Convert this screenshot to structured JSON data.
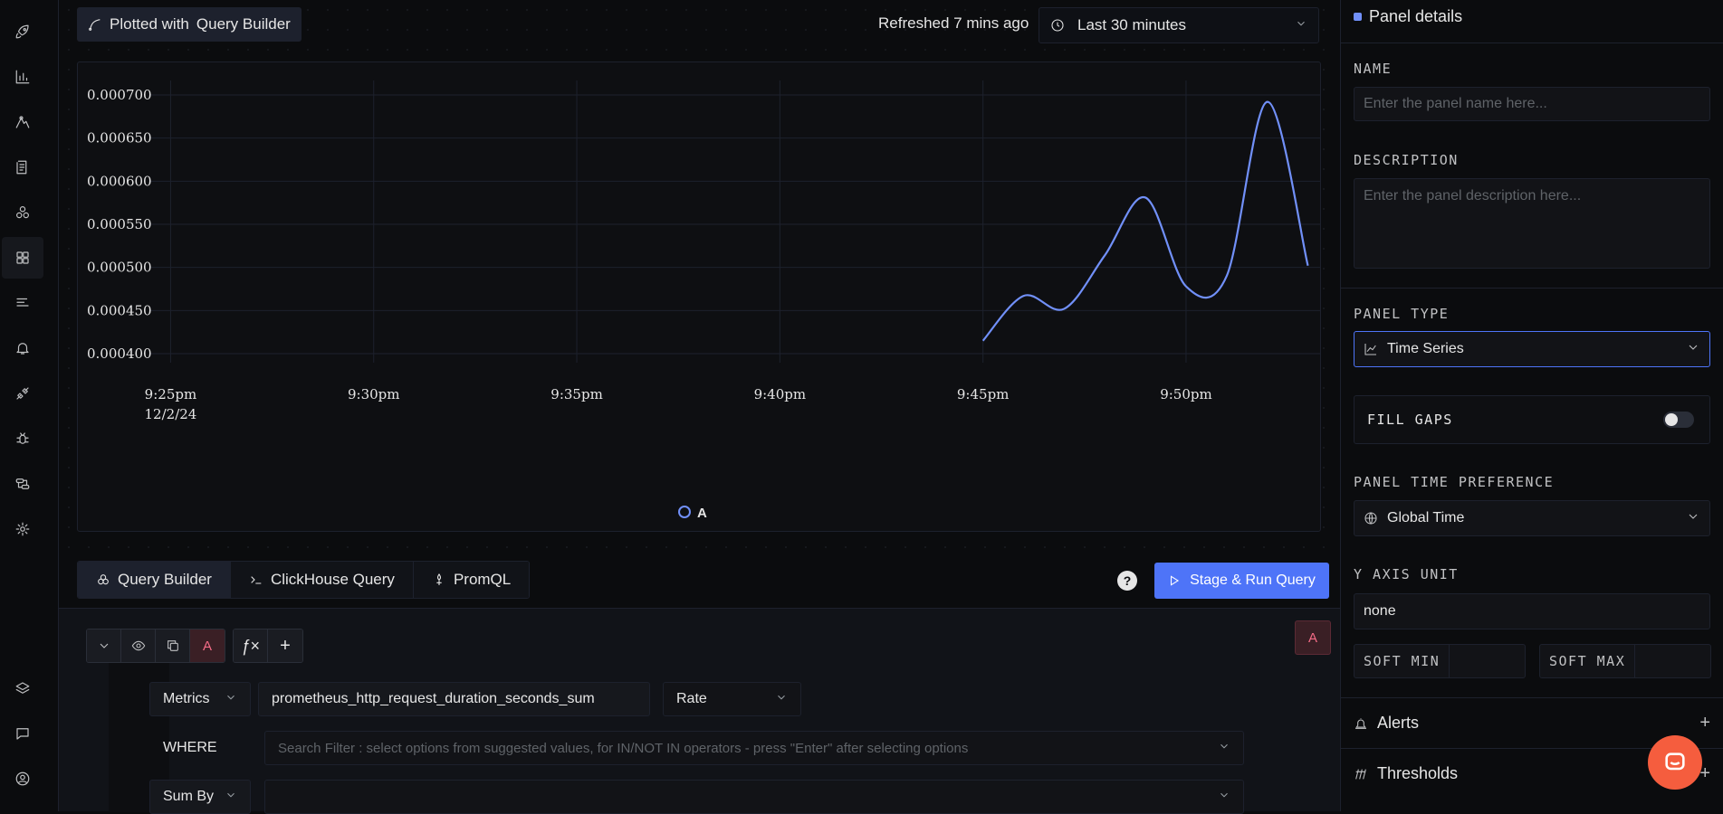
{
  "nav": {
    "top_items": [
      "rocket-icon",
      "bar-chart-icon",
      "draw-icon",
      "logs-icon",
      "services-icon",
      "dashboard-icon",
      "list-icon",
      "alerts-icon",
      "integrations-icon",
      "bug-icon",
      "pipelines-icon",
      "settings-icon"
    ],
    "bottom_items": [
      "layers-icon",
      "chat-icon",
      "user-icon"
    ],
    "active": "dashboard-icon"
  },
  "header": {
    "plotted_prefix": "Plotted with",
    "plotted_source": "Query Builder",
    "refreshed": "Refreshed 7 mins ago",
    "time_range": "Last 30 minutes"
  },
  "chart_data": {
    "type": "line",
    "x": [
      "9:45pm",
      "9:46pm",
      "9:47pm",
      "9:48pm",
      "9:49pm",
      "9:50pm",
      "9:51pm",
      "9:52pm",
      "9:53pm"
    ],
    "series": [
      {
        "name": "A",
        "color": "#7190f9",
        "values": [
          0.000415,
          0.000467,
          0.000452,
          0.000514,
          0.000581,
          0.000478,
          0.00049,
          0.000692,
          0.000502
        ]
      }
    ],
    "y_ticks": [
      "0.000700",
      "0.000650",
      "0.000600",
      "0.000550",
      "0.000500",
      "0.000450",
      "0.000400"
    ],
    "x_ticks": [
      "9:25pm",
      "9:30pm",
      "9:35pm",
      "9:40pm",
      "9:45pm",
      "9:50pm"
    ],
    "x_tick_date": "12/2/24",
    "ylim": [
      0.0004,
      0.0007
    ],
    "xlim_minutes": [
      -0.5,
      28.3
    ],
    "grid": true,
    "legend": "bottom-center"
  },
  "query": {
    "tabs": [
      "Query Builder",
      "ClickHouse Query",
      "PromQL"
    ],
    "active_tab": "Query Builder",
    "help": "?",
    "run_label": "Stage & Run Query",
    "query_name": "A",
    "fx": "ƒ×",
    "add": "+",
    "metrics_label": "Metrics",
    "metric_value": "prometheus_http_request_duration_seconds_sum",
    "aggregate": "Rate",
    "where_label": "WHERE",
    "where_placeholder": "Search Filter : select options from suggested values, for IN/NOT IN operators - press \"Enter\" after selecting options",
    "sumby_label": "Sum By"
  },
  "panel": {
    "title": "Panel details",
    "name_label": "NAME",
    "name_placeholder": "Enter the panel name here...",
    "desc_label": "DESCRIPTION",
    "desc_placeholder": "Enter the panel description here...",
    "type_label": "PANEL TYPE",
    "type_value": "Time Series",
    "fill_gaps_label": "FILL GAPS",
    "fill_gaps_on": false,
    "time_pref_label": "PANEL TIME PREFERENCE",
    "time_pref_value": "Global Time",
    "yunit_label": "Y AXIS UNIT",
    "yunit_value": "none",
    "soft_min": "SOFT MIN",
    "soft_max": "SOFT MAX",
    "alerts": "Alerts",
    "thresholds": "Thresholds",
    "plus": "+"
  }
}
